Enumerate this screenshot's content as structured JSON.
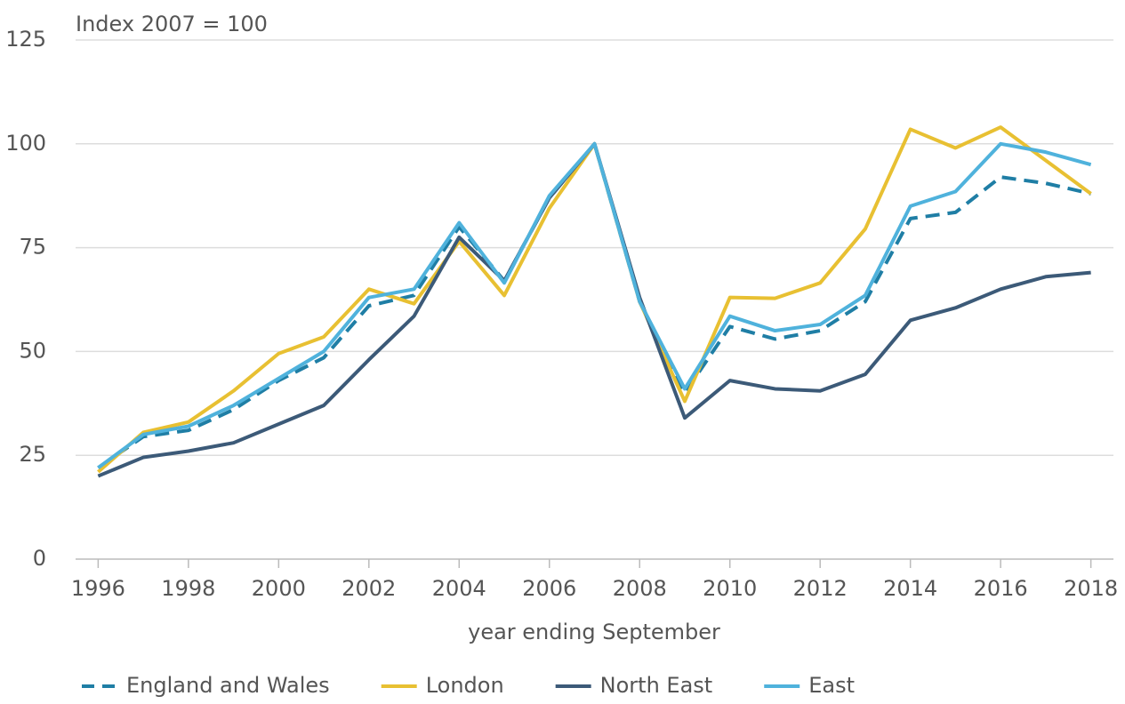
{
  "chart_data": {
    "type": "line",
    "y_label": "Index 2007 = 100",
    "x_label": "year ending September",
    "x": [
      1996,
      1997,
      1998,
      1999,
      2000,
      2001,
      2002,
      2003,
      2004,
      2005,
      2006,
      2007,
      2008,
      2009,
      2010,
      2011,
      2012,
      2013,
      2014,
      2015,
      2016,
      2017,
      2018
    ],
    "series": [
      {
        "name": "England and Wales",
        "color": "#1f7ea5",
        "dashed": true,
        "values": [
          22,
          29.5,
          31,
          36,
          43,
          48.5,
          61,
          63.5,
          80,
          67,
          87,
          100,
          62,
          40,
          56,
          53,
          55,
          62,
          82,
          83.5,
          92,
          90.5,
          88
        ]
      },
      {
        "name": "London",
        "color": "#e8c032",
        "dashed": false,
        "values": [
          21,
          30.5,
          33,
          40.5,
          49.5,
          53.5,
          65,
          61.5,
          76.5,
          63.5,
          84.5,
          100,
          62,
          38,
          63,
          62.8,
          66.5,
          79.5,
          103.5,
          99,
          104,
          96,
          88
        ]
      },
      {
        "name": "North East",
        "color": "#3c5a78",
        "dashed": false,
        "values": [
          20,
          24.5,
          26,
          28,
          32.5,
          37,
          48,
          58.5,
          77.5,
          67,
          87,
          100,
          63,
          34,
          43,
          41,
          40.5,
          44.5,
          57.5,
          60.5,
          65,
          68,
          69
        ]
      },
      {
        "name": "East",
        "color": "#4fb2dc",
        "dashed": false,
        "values": [
          22,
          30,
          32,
          37,
          43.5,
          50,
          63,
          65,
          81,
          66.5,
          87.5,
          100,
          62,
          41,
          58.5,
          55,
          56.5,
          63.5,
          85,
          88.5,
          100,
          98,
          95
        ]
      }
    ],
    "xlim": [
      1995.5,
      2018.5
    ],
    "xticks": [
      1996,
      1998,
      2000,
      2002,
      2004,
      2006,
      2008,
      2010,
      2012,
      2014,
      2016,
      2018
    ],
    "ylim": [
      0,
      125
    ],
    "yticks": [
      0,
      25,
      50,
      75,
      100,
      125
    ],
    "grid": true,
    "legend": "bottom"
  }
}
